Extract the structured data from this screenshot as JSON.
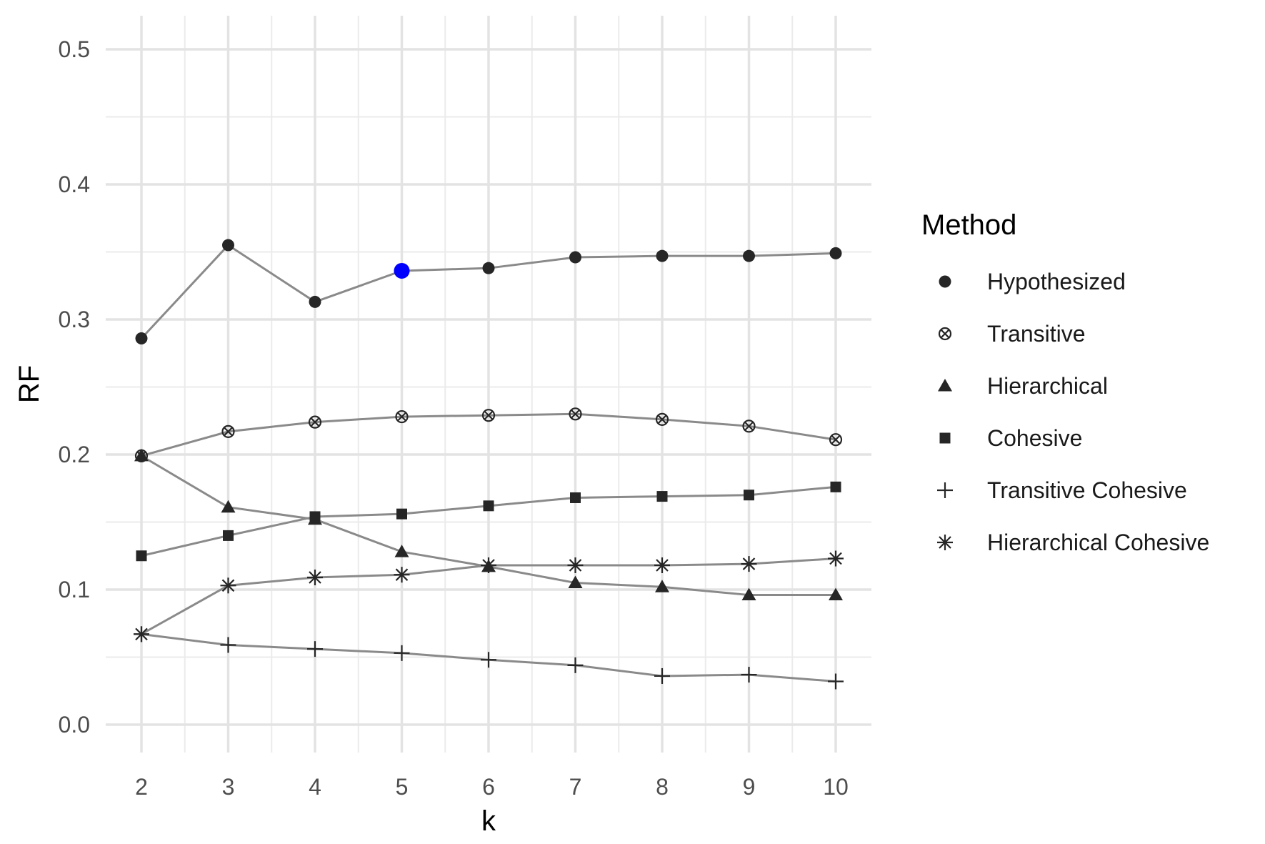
{
  "chart_data": {
    "type": "line",
    "xlabel": "k",
    "ylabel": "RF",
    "xlim": [
      2,
      10
    ],
    "ylim": [
      0,
      0.5
    ],
    "x": [
      2,
      3,
      4,
      5,
      6,
      7,
      8,
      9,
      10
    ],
    "x_ticks": [
      "2",
      "3",
      "4",
      "5",
      "6",
      "7",
      "8",
      "9",
      "10"
    ],
    "y_ticks": [
      "0.0",
      "0.1",
      "0.2",
      "0.3",
      "0.4",
      "0.5"
    ],
    "grid": true,
    "legend": {
      "title": "Method",
      "position": "right"
    },
    "line_color": "#8a8a8a",
    "marker_color": "#262626",
    "highlight": {
      "series": "Hypothesized",
      "x": 5,
      "y": 0.336,
      "color": "#0000ff"
    },
    "series": [
      {
        "name": "Hypothesized",
        "marker": "circle",
        "values": [
          0.286,
          0.355,
          0.313,
          0.336,
          0.338,
          0.346,
          0.347,
          0.347,
          0.349
        ]
      },
      {
        "name": "Transitive",
        "marker": "circle-cross",
        "values": [
          0.199,
          0.217,
          0.224,
          0.228,
          0.229,
          0.23,
          0.226,
          0.221,
          0.211
        ]
      },
      {
        "name": "Hierarchical",
        "marker": "triangle",
        "values": [
          0.199,
          0.161,
          0.152,
          0.128,
          0.117,
          0.105,
          0.102,
          0.096,
          0.096
        ]
      },
      {
        "name": "Cohesive",
        "marker": "square",
        "values": [
          0.125,
          0.14,
          0.154,
          0.156,
          0.162,
          0.168,
          0.169,
          0.17,
          0.176
        ]
      },
      {
        "name": "Transitive Cohesive",
        "marker": "plus",
        "values": [
          0.067,
          0.059,
          0.056,
          0.053,
          0.048,
          0.044,
          0.036,
          0.037,
          0.032
        ]
      },
      {
        "name": "Hierarchical Cohesive",
        "marker": "asterisk",
        "values": [
          0.067,
          0.103,
          0.109,
          0.111,
          0.118,
          0.118,
          0.118,
          0.119,
          0.123
        ]
      }
    ]
  }
}
